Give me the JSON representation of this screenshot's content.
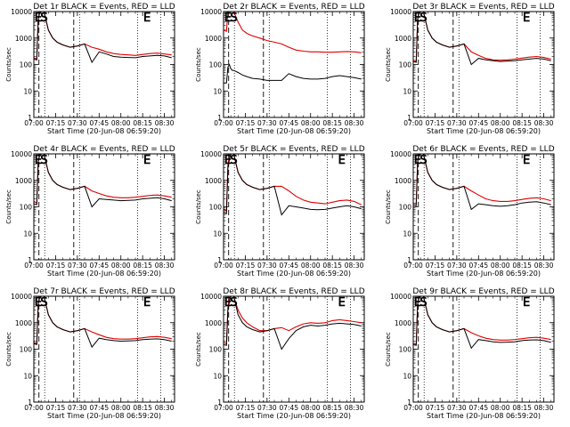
{
  "chart_data": {
    "type": "line",
    "panel_count": 9,
    "x_tick_labels": [
      "07:00",
      "07:15",
      "07:30",
      "07:45",
      "08:00",
      "08:15",
      "08:30"
    ],
    "x_ticks_min": [
      0,
      15,
      30,
      45,
      60,
      75,
      90
    ],
    "x_range_min": [
      0,
      97
    ],
    "xlabel": "Start Time (20-Jun-08 06:59:20)",
    "ylabel": "Counts/sec",
    "y_scale": "log",
    "ylim": [
      1,
      10000
    ],
    "y_tick_labels": [
      "1",
      "10",
      "100",
      "1000",
      "10000"
    ],
    "y_tick_values": [
      1,
      10,
      100,
      1000,
      10000
    ],
    "colors": {
      "events": "#000000",
      "lld": "#e00000"
    },
    "shared_x_min": [
      0,
      2,
      3,
      4,
      5,
      6,
      7,
      10,
      13,
      16,
      20,
      25,
      30,
      35,
      40,
      45,
      50,
      55,
      60,
      65,
      70,
      75,
      80,
      85,
      90,
      95
    ],
    "event_start_index": 14,
    "panels": [
      {
        "title": "Det 1r BLACK = Events, RED = LLD",
        "markers": [
          {
            "label": "E",
            "x": 0.5
          },
          {
            "label": "S",
            "x": 4.5
          },
          {
            "label": "E",
            "x": 75.5
          }
        ],
        "dashed_lines_x": [
          3.5,
          27.5
        ],
        "dotted_lines_x": [
          7.5,
          31.5,
          71.5,
          87.5
        ],
        "events": [
          160,
          150,
          5000,
          9000,
          10000,
          10000,
          10000,
          2000,
          1000,
          700,
          550,
          450,
          500,
          600,
          120,
          300,
          250,
          200,
          190,
          185,
          180,
          200,
          210,
          220,
          210,
          180
        ],
        "lld": [
          180,
          160,
          5000,
          9000,
          10000,
          10000,
          10000,
          2000,
          1000,
          700,
          550,
          450,
          500,
          600,
          450,
          380,
          300,
          260,
          240,
          230,
          220,
          240,
          260,
          270,
          250,
          230
        ]
      },
      {
        "title": "Det 2r BLACK = Events, RED = LLD",
        "markers": [
          {
            "label": "E",
            "x": 0.5
          },
          {
            "label": "S",
            "x": 4.5
          }
        ],
        "dashed_lines_x": [
          3.5,
          27.5
        ],
        "dotted_lines_x": [
          7.5,
          31.5,
          71.5,
          87.5
        ],
        "events": [
          20,
          20,
          80,
          100,
          70,
          60,
          60,
          50,
          40,
          35,
          30,
          28,
          25,
          25,
          25,
          45,
          35,
          30,
          28,
          28,
          30,
          35,
          38,
          35,
          32,
          28
        ],
        "lld": [
          2000,
          1800,
          10000,
          10000,
          10000,
          10000,
          10000,
          4000,
          2000,
          1500,
          1200,
          1000,
          800,
          700,
          600,
          450,
          350,
          320,
          300,
          300,
          290,
          290,
          300,
          310,
          300,
          280
        ]
      },
      {
        "title": "Det 3r BLACK = Events, RED = LLD",
        "markers": [
          {
            "label": "E",
            "x": 0.5
          },
          {
            "label": "S",
            "x": 4.5
          },
          {
            "label": "E",
            "x": 75.5
          }
        ],
        "dashed_lines_x": [
          3.5,
          27.5
        ],
        "dotted_lines_x": [
          7.5,
          31.5,
          71.5,
          87.5
        ],
        "events": [
          130,
          120,
          5000,
          9000,
          10000,
          10000,
          10000,
          2000,
          1000,
          700,
          550,
          450,
          500,
          600,
          100,
          170,
          150,
          140,
          130,
          135,
          140,
          150,
          160,
          170,
          160,
          140
        ],
        "lld": [
          150,
          130,
          5000,
          9000,
          10000,
          10000,
          10000,
          2000,
          1000,
          700,
          550,
          450,
          500,
          600,
          300,
          220,
          170,
          150,
          145,
          150,
          160,
          175,
          190,
          200,
          185,
          160
        ]
      },
      {
        "title": "Det 4r BLACK = Events, RED = LLD",
        "markers": [
          {
            "label": "E",
            "x": 0.5
          },
          {
            "label": "S",
            "x": 4.5
          },
          {
            "label": "E",
            "x": 75.5
          }
        ],
        "dashed_lines_x": [
          3.5,
          27.5
        ],
        "dotted_lines_x": [
          7.5,
          31.5,
          71.5,
          87.5
        ],
        "events": [
          130,
          120,
          5000,
          9000,
          10000,
          10000,
          10000,
          2000,
          1000,
          700,
          550,
          450,
          500,
          600,
          100,
          200,
          190,
          180,
          170,
          175,
          180,
          200,
          210,
          220,
          200,
          170
        ],
        "lld": [
          160,
          140,
          5000,
          9000,
          10000,
          10000,
          10000,
          2000,
          1000,
          700,
          550,
          450,
          500,
          600,
          400,
          320,
          260,
          230,
          220,
          220,
          230,
          250,
          270,
          280,
          260,
          230
        ]
      },
      {
        "title": "Det 5r BLACK = Events, RED = LLD",
        "markers": [
          {
            "label": "E",
            "x": 0.5
          },
          {
            "label": "S",
            "x": 4.5
          },
          {
            "label": "E",
            "x": 79
          }
        ],
        "dashed_lines_x": [
          3.5,
          27.5
        ],
        "dotted_lines_x": [
          7.5,
          31.5,
          71.5,
          87.5
        ],
        "events": [
          60,
          55,
          3000,
          6000,
          10000,
          10000,
          10000,
          2000,
          1000,
          700,
          550,
          450,
          500,
          600,
          50,
          110,
          100,
          90,
          80,
          78,
          80,
          90,
          100,
          110,
          100,
          85
        ],
        "lld": [
          80,
          70,
          4000,
          8000,
          10000,
          10000,
          10000,
          2000,
          1000,
          700,
          550,
          450,
          500,
          600,
          600,
          400,
          250,
          180,
          150,
          140,
          130,
          150,
          170,
          180,
          160,
          120
        ]
      },
      {
        "title": "Det 6r BLACK = Events, RED = LLD",
        "markers": [
          {
            "label": "E",
            "x": 0.5
          },
          {
            "label": "S",
            "x": 4.5
          },
          {
            "label": "E",
            "x": 75.5
          }
        ],
        "dashed_lines_x": [
          3.5,
          27.5
        ],
        "dotted_lines_x": [
          7.5,
          31.5,
          71.5,
          87.5
        ],
        "events": [
          120,
          110,
          5000,
          9000,
          10000,
          10000,
          10000,
          2000,
          1000,
          700,
          550,
          450,
          500,
          600,
          80,
          130,
          120,
          110,
          105,
          110,
          120,
          140,
          150,
          155,
          140,
          120
        ],
        "lld": [
          140,
          130,
          5000,
          9000,
          10000,
          10000,
          10000,
          2000,
          1000,
          700,
          550,
          450,
          500,
          600,
          400,
          280,
          200,
          170,
          160,
          160,
          170,
          190,
          210,
          220,
          200,
          170
        ]
      },
      {
        "title": "Det 7r BLACK = Events, RED = LLD",
        "markers": [
          {
            "label": "E",
            "x": 0.5
          },
          {
            "label": "S",
            "x": 4.5
          },
          {
            "label": "E",
            "x": 75.5
          }
        ],
        "dashed_lines_x": [
          3.5,
          27.5
        ],
        "dotted_lines_x": [
          7.5,
          31.5,
          71.5,
          87.5
        ],
        "events": [
          160,
          150,
          5000,
          9000,
          10000,
          10000,
          10000,
          2000,
          1000,
          700,
          550,
          450,
          500,
          600,
          120,
          260,
          230,
          210,
          200,
          205,
          210,
          230,
          240,
          245,
          230,
          200
        ],
        "lld": [
          180,
          160,
          5000,
          9000,
          10000,
          10000,
          10000,
          2000,
          1000,
          700,
          550,
          450,
          500,
          600,
          450,
          350,
          280,
          250,
          240,
          240,
          250,
          270,
          290,
          300,
          280,
          250
        ]
      },
      {
        "title": "Det 8r BLACK = Events, RED = LLD",
        "markers": [
          {
            "label": "E",
            "x": 0.5
          },
          {
            "label": "S",
            "x": 4.5
          },
          {
            "label": "E",
            "x": 79
          }
        ],
        "dashed_lines_x": [
          3.5,
          27.5
        ],
        "dotted_lines_x": [
          7.5,
          31.5,
          71.5,
          87.5
        ],
        "events": [
          150,
          140,
          3000,
          6000,
          10000,
          10000,
          10000,
          2000,
          1000,
          700,
          550,
          450,
          500,
          600,
          100,
          250,
          500,
          700,
          800,
          750,
          800,
          900,
          950,
          900,
          850,
          750
        ],
        "lld": [
          180,
          160,
          4000,
          8000,
          10000,
          10000,
          10000,
          3000,
          1500,
          1000,
          700,
          500,
          500,
          600,
          650,
          500,
          700,
          900,
          1000,
          950,
          1000,
          1200,
          1300,
          1200,
          1100,
          1000
        ]
      },
      {
        "title": "Det 9r BLACK = Events, RED = LLD",
        "markers": [
          {
            "label": "E",
            "x": 0.5
          },
          {
            "label": "S",
            "x": 4.5
          },
          {
            "label": "E",
            "x": 75.5
          }
        ],
        "dashed_lines_x": [
          3.5,
          27.5
        ],
        "dotted_lines_x": [
          7.5,
          31.5,
          71.5,
          87.5
        ],
        "events": [
          150,
          140,
          5000,
          9000,
          10000,
          10000,
          10000,
          2000,
          1000,
          700,
          550,
          450,
          500,
          600,
          110,
          230,
          210,
          190,
          180,
          185,
          190,
          210,
          220,
          225,
          210,
          180
        ],
        "lld": [
          170,
          150,
          5000,
          9000,
          10000,
          10000,
          10000,
          2000,
          1000,
          700,
          550,
          450,
          500,
          600,
          420,
          320,
          260,
          230,
          220,
          220,
          230,
          250,
          270,
          280,
          260,
          230
        ]
      }
    ]
  }
}
